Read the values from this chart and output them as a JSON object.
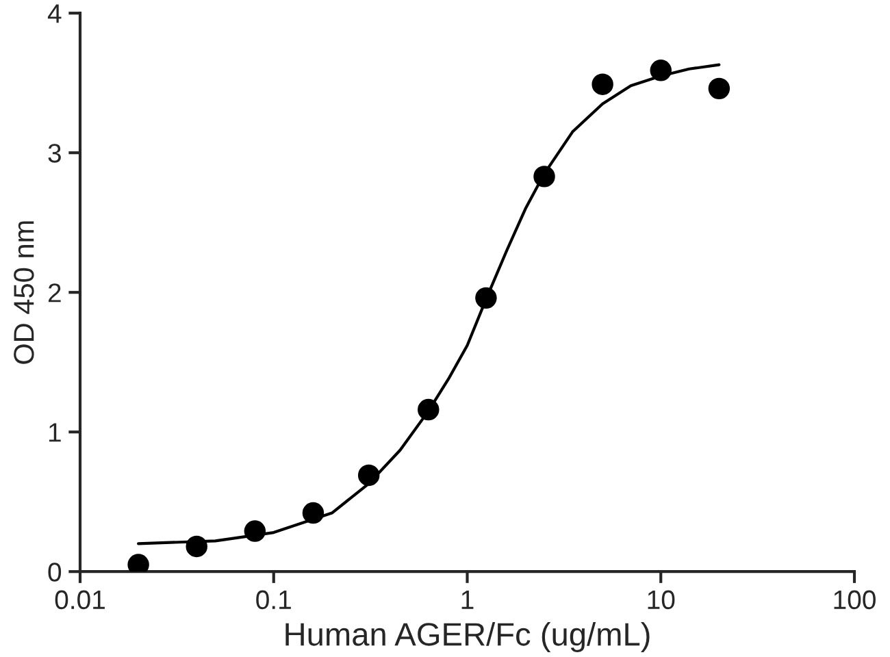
{
  "chart_data": {
    "type": "scatter",
    "xlabel": "Human AGER/Fc (ug/mL)",
    "ylabel": "OD 450 nm",
    "log": "x",
    "xlim": [
      0.01,
      100
    ],
    "xticks": [
      0.01,
      0.1,
      1,
      10,
      100
    ],
    "ylim": [
      0,
      4
    ],
    "yticks": [
      0,
      1,
      2,
      3,
      4
    ],
    "grid": false,
    "series": [
      {
        "marker": "circle",
        "color": "#000000",
        "x": [
          0.02,
          0.04,
          0.08,
          0.16,
          0.31,
          0.63,
          1.25,
          2.5,
          5,
          10,
          20
        ],
        "values": [
          0.05,
          0.18,
          0.29,
          0.42,
          0.69,
          1.16,
          1.96,
          2.83,
          3.49,
          3.59,
          3.46
        ]
      },
      {
        "type": "line",
        "color": "#000000",
        "marker": "none",
        "x": [
          0.02,
          0.05,
          0.1,
          0.2,
          0.31,
          0.45,
          0.63,
          0.8,
          1,
          1.25,
          1.6,
          2,
          2.5,
          3.5,
          5,
          7,
          10,
          14,
          20
        ],
        "values": [
          0.2,
          0.22,
          0.28,
          0.42,
          0.63,
          0.87,
          1.15,
          1.38,
          1.62,
          1.95,
          2.3,
          2.6,
          2.85,
          3.15,
          3.35,
          3.48,
          3.55,
          3.6,
          3.63
        ]
      }
    ]
  }
}
